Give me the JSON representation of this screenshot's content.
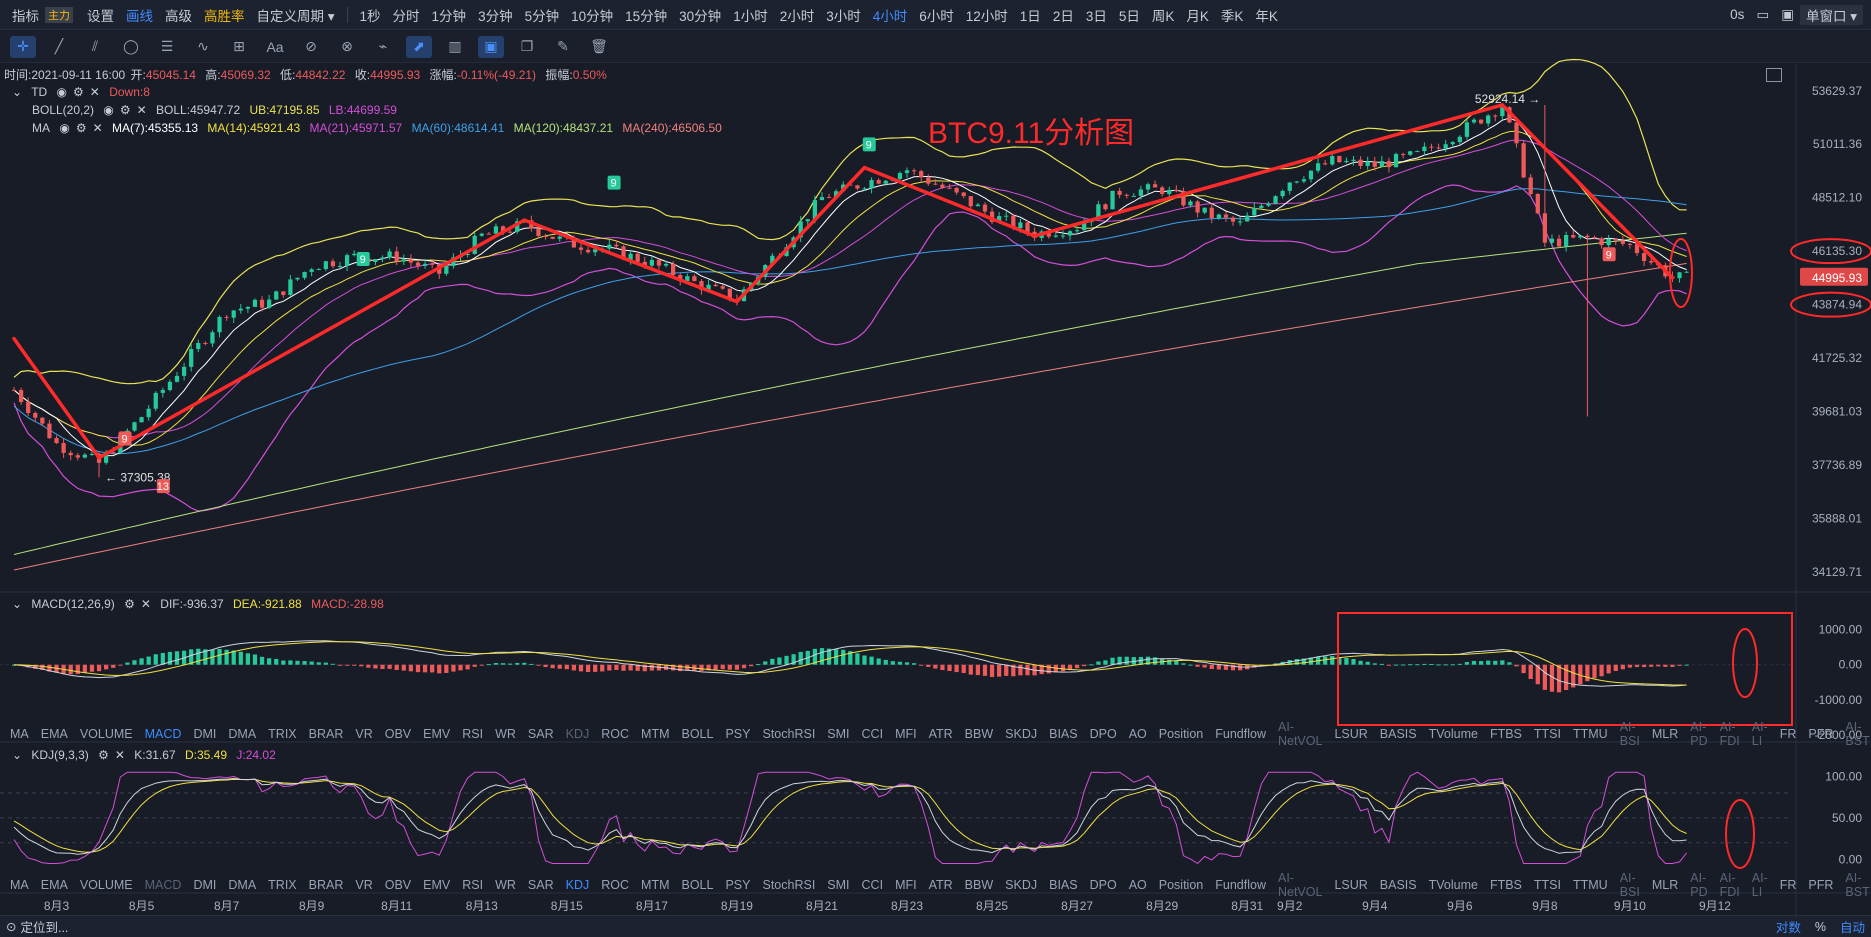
{
  "topbar": {
    "items": [
      {
        "label": "指标",
        "icon": "chart-icon"
      },
      {
        "label": "主力",
        "tag": true
      },
      {
        "label": "设置",
        "icon": "gear-icon"
      },
      {
        "label": "画线",
        "icon": "pen-icon",
        "active": true
      },
      {
        "label": "高级",
        "icon": "calendar-icon"
      },
      {
        "label": "高胜率",
        "icon": "coin-icon",
        "gold": true
      },
      {
        "label": "自定义周期 ▾"
      },
      {
        "label": "1秒"
      },
      {
        "label": "分时"
      },
      {
        "label": "1分钟"
      },
      {
        "label": "3分钟"
      },
      {
        "label": "5分钟"
      },
      {
        "label": "10分钟"
      },
      {
        "label": "15分钟"
      },
      {
        "label": "30分钟"
      },
      {
        "label": "1小时"
      },
      {
        "label": "2小时"
      },
      {
        "label": "3小时"
      },
      {
        "label": "4小时",
        "active": true
      },
      {
        "label": "6小时"
      },
      {
        "label": "12小时"
      },
      {
        "label": "1日"
      },
      {
        "label": "2日"
      },
      {
        "label": "3日"
      },
      {
        "label": "5日"
      },
      {
        "label": "周K"
      },
      {
        "label": "月K"
      },
      {
        "label": "季K"
      },
      {
        "label": "年K"
      }
    ],
    "right": {
      "time": "0s",
      "window": "单窗口 ▾"
    }
  },
  "overlay_title": "BTC9.11分析图",
  "info_line": {
    "time": "时间:2021-09-11 16:00",
    "open_label": "开:",
    "open": "45045.14",
    "high_label": "高:",
    "high": "45069.32",
    "low_label": "低:",
    "low": "44842.22",
    "close_label": "收:",
    "close": "44995.93",
    "change_label": "涨幅:",
    "change": "-0.11%(-49.21)",
    "amp_label": "振幅:",
    "amp": "0.50%"
  },
  "legend": {
    "td": "TD",
    "td_val": "Down:8",
    "boll": "BOLL(20,2)",
    "boll_mid": "BOLL:45947.72",
    "boll_ub": "UB:47195.85",
    "boll_lb": "LB:44699.59",
    "ma": "MA",
    "ma7": "MA(7):45355.13",
    "ma14": "MA(14):45921.43",
    "ma21": "MA(21):45971.57",
    "ma60": "MA(60):48614.41",
    "ma120": "MA(120):48437.21",
    "ma240": "MA(240):46506.50",
    "macd": "MACD(12,26,9)",
    "dif": "DIF:-936.37",
    "dea": "DEA:-921.88",
    "macd_val": "MACD:-28.98",
    "kdj": "KDJ(9,3,3)",
    "k": "K:31.67",
    "d": "D:35.49",
    "j": "J:24.02"
  },
  "colors": {
    "up": "#26c99a",
    "down": "#ee5a5a",
    "boll": "#e8e354",
    "ma7": "#ffffff",
    "ma14": "#f0e040",
    "ma21": "#d54ed8",
    "ma60": "#3fa0e8",
    "ma120": "#b6e27b",
    "ma240": "#f08080",
    "annot": "#ff2a2a"
  },
  "price_axis": [
    "53629.37",
    "51011.36",
    "48512.10",
    "46135.30",
    "44995.93",
    "43874.94",
    "41725.32",
    "39681.03",
    "37736.89",
    "35888.01",
    "34129.71"
  ],
  "macd_axis": [
    "1000.00",
    "0.00",
    "-1000.00",
    "-2000.00"
  ],
  "kdj_axis": [
    "100.00",
    "50.00",
    "0.00"
  ],
  "x_axis": [
    "8月3",
    "8月5",
    "8月7",
    "8月9",
    "8月11",
    "8月13",
    "8月15",
    "8月17",
    "8月19",
    "8月21",
    "8月23",
    "8月25",
    "8月27",
    "8月29",
    "8月31",
    "9月2",
    "9月4",
    "9月6",
    "9月8",
    "9月10",
    "9月12"
  ],
  "indicator_tabs": [
    "MA",
    "EMA",
    "VOLUME",
    "MACD",
    "DMI",
    "DMA",
    "TRIX",
    "BRAR",
    "VR",
    "OBV",
    "EMV",
    "RSI",
    "WR",
    "SAR",
    "KDJ",
    "ROC",
    "MTM",
    "BOLL",
    "PSY",
    "StochRSI",
    "SMI",
    "CCI",
    "MFI",
    "ATR",
    "BBW",
    "SKDJ",
    "BIAS",
    "DPO",
    "AO",
    "Position",
    "Fundflow",
    "AI-NetVOL",
    "LSUR",
    "BASIS",
    "TVolume",
    "FTBS",
    "TTSI",
    "TTMU",
    "AI-BSI",
    "MLR",
    "AI-PD",
    "AI-FDI",
    "AI-LI",
    "FR",
    "PFR",
    "AI-BST"
  ],
  "dim_tabs": [
    "KDJ",
    "AI-NetVOL",
    "AI-BSI",
    "AI-PD",
    "AI-FDI",
    "AI-LI",
    "AI-BST"
  ],
  "dim_tabs2": [
    "MACD",
    "AI-NetVOL",
    "AI-BSI",
    "AI-PD",
    "AI-FDI",
    "AI-LI",
    "AI-BST"
  ],
  "bottombar": {
    "locate": "定位到...",
    "log": "对数",
    "pct": "%",
    "auto": "自动"
  },
  "peak_labels": {
    "high": "52924.14",
    "low": "37305.38"
  },
  "td_marks": [
    "9",
    "13",
    "9",
    "9",
    "9",
    "9"
  ],
  "chart_data": {
    "type": "candlestick",
    "symbol_period": "4小时",
    "annotation_title": "BTC9.11分析图",
    "x_range": [
      "2021-08-02",
      "2021-09-12"
    ],
    "ylim": [
      33500,
      55000
    ],
    "trend_lines": [
      {
        "from": [
          "8月2",
          42500
        ],
        "to": [
          "8月4",
          38000
        ]
      },
      {
        "from": [
          "8月4",
          38000
        ],
        "to": [
          "8月14",
          47500
        ]
      },
      {
        "from": [
          "8月14",
          47500
        ],
        "to": [
          "8月19",
          44000
        ]
      },
      {
        "from": [
          "8月19",
          44000
        ],
        "to": [
          "8月22",
          49900
        ]
      },
      {
        "from": [
          "8月22",
          49900
        ],
        "to": [
          "8月26",
          46800
        ]
      },
      {
        "from": [
          "8月26",
          46800
        ],
        "to": [
          "9月7",
          52924.14
        ]
      },
      {
        "from": [
          "9月7",
          52924.14
        ],
        "to": [
          "9月11",
          44995.93
        ]
      }
    ],
    "close_path": [
      [
        "8月2",
        40500
      ],
      [
        "8月3",
        38500
      ],
      [
        "8月4",
        37800
      ],
      [
        "8月5",
        39500
      ],
      [
        "8月6",
        41500
      ],
      [
        "8月7",
        43600
      ],
      [
        "8月8",
        44000
      ],
      [
        "8月9",
        45500
      ],
      [
        "8月10",
        45900
      ],
      [
        "8月11",
        45900
      ],
      [
        "8月12",
        45200
      ],
      [
        "8月13",
        46800
      ],
      [
        "8月14",
        47300
      ],
      [
        "8月15",
        46500
      ],
      [
        "8月16",
        46200
      ],
      [
        "8月17",
        45600
      ],
      [
        "8月18",
        44800
      ],
      [
        "8月19",
        44100
      ],
      [
        "8月20",
        46200
      ],
      [
        "8月21",
        48500
      ],
      [
        "8月22",
        49200
      ],
      [
        "8月23",
        49800
      ],
      [
        "8月24",
        48800
      ],
      [
        "8月25",
        47700
      ],
      [
        "8月26",
        46900
      ],
      [
        "8月27",
        47200
      ],
      [
        "8月28",
        48800
      ],
      [
        "8月29",
        48900
      ],
      [
        "8月30",
        47800
      ],
      [
        "8月31",
        47200
      ],
      [
        "9月1",
        47600
      ],
      [
        "9月2",
        49300
      ],
      [
        "9月3",
        50200
      ],
      [
        "9月4",
        50000
      ],
      [
        "9月5",
        50500
      ],
      [
        "9月6",
        51600
      ],
      [
        "9月7",
        52900
      ],
      [
        "9月8",
        46500
      ],
      [
        "9月9",
        46700
      ],
      [
        "9月10",
        46400
      ],
      [
        "9月11",
        44996
      ]
    ],
    "extremes": {
      "high": 52924.14,
      "low": 37305.38
    },
    "macd": {
      "dif": -936.37,
      "dea": -921.88,
      "hist": -28.98
    },
    "kdj": {
      "k": 31.67,
      "d": 35.49,
      "j": 24.02
    }
  }
}
